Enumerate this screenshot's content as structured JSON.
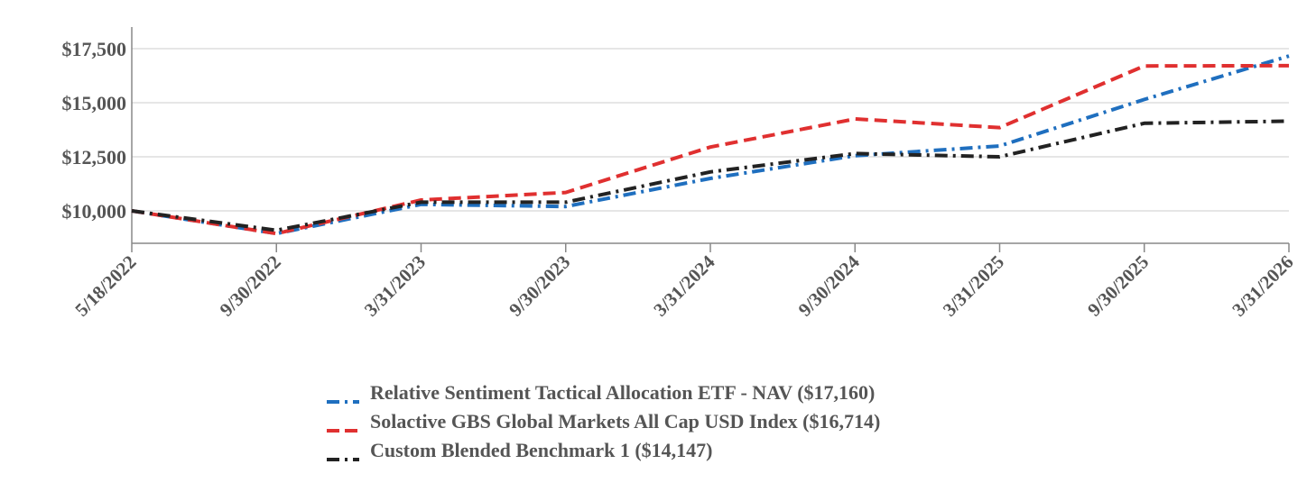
{
  "chart_data": {
    "type": "line",
    "title": "",
    "xlabel": "",
    "ylabel": "",
    "x": [
      "5/18/2022",
      "9/30/2022",
      "3/31/2023",
      "9/30/2023",
      "3/31/2024",
      "9/30/2024",
      "3/31/2025",
      "9/30/2025",
      "3/31/2026"
    ],
    "y_ticks": [
      "$10,000",
      "$12,500",
      "$15,000",
      "$17,500"
    ],
    "y_tick_values": [
      10000,
      12500,
      15000,
      17500
    ],
    "ylim": [
      8500,
      18500
    ],
    "grid": true,
    "legend_position": "bottom",
    "series": [
      {
        "name": "Relative Sentiment Tactical Allocation ETF - NAV ($17,160)",
        "color": "#1f6fbf",
        "dash": "dash-dot",
        "values": [
          10000,
          8950,
          10300,
          10200,
          11500,
          12550,
          13000,
          15150,
          17160
        ]
      },
      {
        "name": "Solactive GBS Global Markets All Cap USD Index ($16,714)",
        "color": "#e03030",
        "dash": "dash",
        "values": [
          10000,
          8950,
          10500,
          10850,
          12950,
          14250,
          13850,
          16700,
          16714
        ]
      },
      {
        "name": "Custom Blended Benchmark 1 ($14,147)",
        "color": "#222222",
        "dash": "dash-dot",
        "values": [
          10000,
          9100,
          10400,
          10400,
          11800,
          12650,
          12500,
          14050,
          14147
        ]
      }
    ]
  }
}
